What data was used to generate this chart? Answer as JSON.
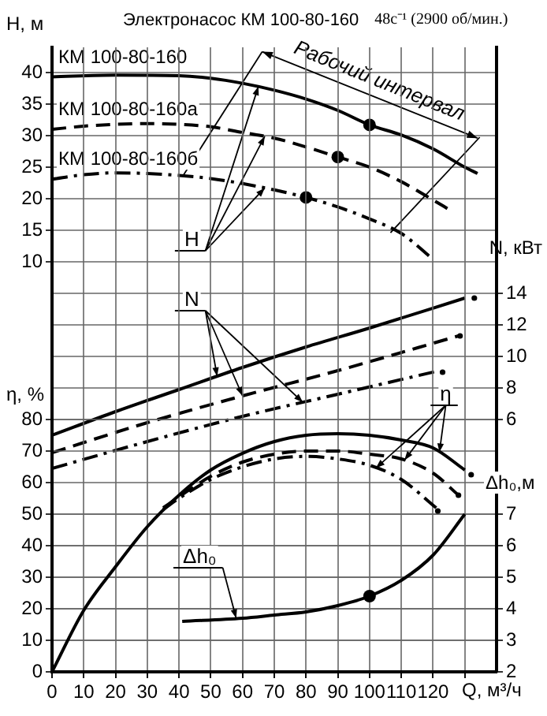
{
  "chart_data": [
    {
      "type": "line",
      "title": "Электронасос КМ 100-80-160",
      "subtitle": "48с⁻¹ (2900 об/мин.)",
      "ylabel": "H, м",
      "y2label": "N, кВт",
      "annotations": [
        "Рабочий интервал",
        "H",
        "N"
      ],
      "xlim": [
        0,
        140
      ],
      "xticks": [
        0,
        10,
        20,
        30,
        40,
        50,
        60,
        70,
        80,
        90,
        100,
        110,
        120,
        {
          "value": 130,
          "label": null
        }
      ],
      "ylim": [
        -55,
        44
      ],
      "yticks": [
        10,
        15,
        20,
        25,
        30,
        35,
        40
      ],
      "y2lim": [
        -10,
        29.6
      ],
      "y2ticks": [
        6,
        8,
        10,
        12,
        14
      ],
      "grid": "y",
      "tick_labels": "y",
      "series": [
        {
          "name": "КМ 100-80-160",
          "color": "#000000",
          "line_style": "solid",
          "x": [
            0,
            20,
            40,
            50,
            60,
            70,
            80,
            90,
            100,
            110,
            120,
            130,
            134
          ],
          "values": [
            39.3,
            39.6,
            39.5,
            39.1,
            38.3,
            37.2,
            35.8,
            34,
            31.7,
            30.1,
            27.9,
            25,
            24
          ]
        },
        {
          "name": "КМ 100-80-160а",
          "color": "#000000",
          "line_style": "dashed",
          "x": [
            0,
            10,
            20,
            30,
            40,
            50,
            60,
            70,
            80,
            90,
            100,
            110,
            120,
            125
          ],
          "values": [
            31,
            31.5,
            31.8,
            31.9,
            31.8,
            31.4,
            30.5,
            29.6,
            28.2,
            26.6,
            25,
            22.7,
            19.8,
            18.3
          ]
        },
        {
          "name": "КМ 100-80-160б",
          "color": "#000000",
          "line_style": "dashdot",
          "x": [
            0,
            10,
            20,
            30,
            40,
            50,
            60,
            70,
            80,
            90,
            100,
            110,
            120
          ],
          "values": [
            23.1,
            23.8,
            24.1,
            24,
            23.7,
            23.2,
            22.4,
            21.4,
            20.2,
            18.7,
            16.8,
            14.5,
            10.4
          ]
        },
        {
          "axis": "y2",
          "color": "#000000",
          "line_style": "solid",
          "x": [
            0,
            20,
            40,
            60,
            80,
            100,
            130
          ],
          "values": [
            5,
            6.5,
            7.9,
            9.3,
            10.6,
            11.8,
            13.7
          ]
        },
        {
          "axis": "y2",
          "color": "#000000",
          "line_style": "dashed",
          "x": [
            0,
            30,
            60,
            90,
            128
          ],
          "values": [
            3.9,
            5.8,
            7.5,
            9.1,
            11.3
          ]
        },
        {
          "axis": "y2",
          "color": "#000000",
          "line_style": "dashdot",
          "x": [
            0,
            30,
            60,
            90,
            122
          ],
          "values": [
            2.9,
            4.6,
            6.2,
            7.6,
            9.1
          ]
        },
        {
          "type": "scatter",
          "color": "#000000",
          "marker": "circle",
          "x": [
            100,
            90,
            80
          ],
          "values": [
            31.7,
            26.6,
            20.2
          ]
        },
        {
          "type": "scatter",
          "axis": "y2",
          "color": "#000000",
          "marker": "circle",
          "x": [
            133,
            128.5,
            123
          ],
          "values": [
            13.7,
            11.3,
            9
          ]
        }
      ]
    },
    {
      "type": "line",
      "xlabel": "Q, м³/ч",
      "ylabel": "η, %",
      "y2label": "Δh₀,м",
      "annotations": [
        "η",
        "Δh₀"
      ],
      "xlim": [
        0,
        140
      ],
      "xticks": [
        0,
        10,
        20,
        30,
        40,
        50,
        60,
        70,
        80,
        90,
        100,
        110,
        120,
        {
          "value": 130,
          "label": null
        }
      ],
      "ylim": [
        0,
        198
      ],
      "yticks": [
        0,
        10,
        20,
        30,
        40,
        50,
        60,
        70,
        80
      ],
      "y2lim": [
        2,
        21.8
      ],
      "y2ticks": [
        2,
        3,
        4,
        5,
        6,
        7
      ],
      "grid": true,
      "series": [
        {
          "color": "#000000",
          "line_style": "solid",
          "x": [
            0,
            10,
            20,
            30,
            40,
            50,
            60,
            70,
            80,
            90,
            100,
            110,
            120,
            130
          ],
          "values": [
            0,
            19.5,
            33.3,
            46,
            56,
            64,
            69.3,
            73,
            75,
            75.5,
            75,
            73.5,
            71,
            64
          ]
        },
        {
          "color": "#000000",
          "line_style": "dashed",
          "x": [
            35,
            40,
            50,
            60,
            70,
            80,
            90,
            100,
            110,
            120,
            128
          ],
          "values": [
            52,
            55.5,
            62,
            66.5,
            69,
            70,
            70,
            69,
            67.5,
            63,
            56
          ]
        },
        {
          "color": "#000000",
          "line_style": "dashdot",
          "x": [
            35,
            40,
            50,
            60,
            70,
            80,
            90,
            100,
            110,
            121
          ],
          "values": [
            51.5,
            55,
            61,
            65,
            67.5,
            68.3,
            67.5,
            65.5,
            61,
            52
          ]
        },
        {
          "axis": "y2",
          "color": "#000000",
          "line_style": "solid",
          "x": [
            41,
            60,
            70,
            80,
            90,
            100,
            110,
            120,
            130
          ],
          "values": [
            3.6,
            3.7,
            3.8,
            3.9,
            4.1,
            4.4,
            4.9,
            5.7,
            7
          ]
        },
        {
          "type": "scatter",
          "axis": "y2",
          "color": "#000000",
          "marker": "circle",
          "x": [
            100
          ],
          "values": [
            4.4
          ]
        },
        {
          "type": "scatter",
          "color": "#000000",
          "marker": "circle",
          "x": [
            132,
            128,
            121.5
          ],
          "values": [
            62.5,
            56,
            51
          ]
        }
      ]
    }
  ]
}
